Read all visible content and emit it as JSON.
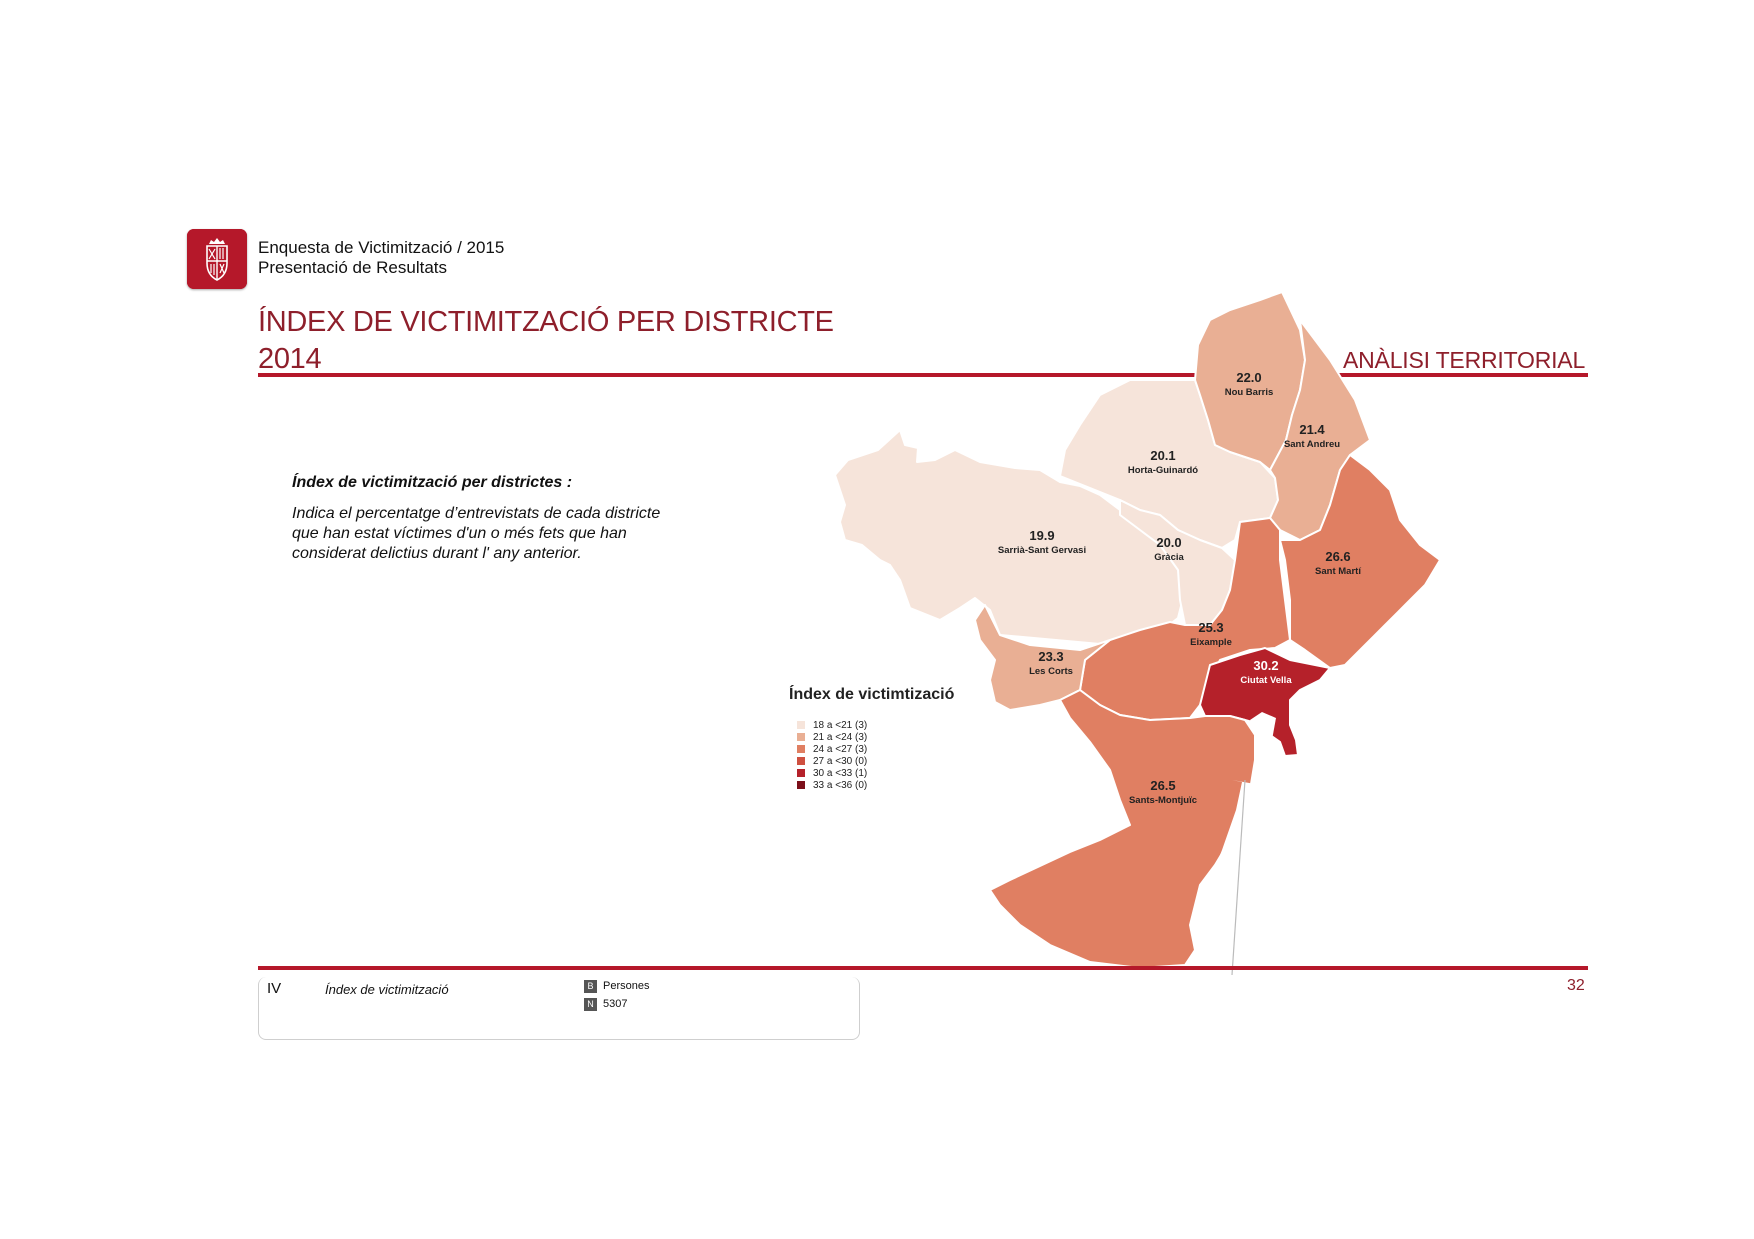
{
  "header": {
    "survey_title": "Enquesta de Victimització / 2015",
    "survey_subtitle": "Presentació de Resultats"
  },
  "title": {
    "line1": "ÍNDEX DE VICTIMITZACIÓ PER DISTRICTE",
    "line2": "2014"
  },
  "section_label": "ANÀLISI TERRITORIAL",
  "definition": {
    "title": "Índex de victimització per districtes :",
    "body": "Indica el percentatge d’entrevistats de cada districte que han estat víctimes d'un o més fets que han considerat delictius durant l' any anterior."
  },
  "map": {
    "legend": {
      "title": "Índex de victimtizació",
      "classes": [
        {
          "label": "18 a <21 (3)",
          "color": "#f6e4da"
        },
        {
          "label": "21 a <24 (3)",
          "color": "#e9af94"
        },
        {
          "label": "24 a <27 (3)",
          "color": "#e07f62"
        },
        {
          "label": "27 a <30 (0)",
          "color": "#cf5040"
        },
        {
          "label": "30 a <33 (1)",
          "color": "#b5212a"
        },
        {
          "label": "33 a <36 (0)",
          "color": "#7c0f1a"
        }
      ]
    },
    "districts": [
      {
        "name": "Nou Barris",
        "value": "22.0",
        "class": 1
      },
      {
        "name": "Sant Andreu",
        "value": "21.4",
        "class": 1
      },
      {
        "name": "Horta-Guinardó",
        "value": "20.1",
        "class": 0
      },
      {
        "name": "Sarrià-Sant Gervasi",
        "value": "19.9",
        "class": 0
      },
      {
        "name": "Gràcia",
        "value": "20.0",
        "class": 0
      },
      {
        "name": "Sant Martí",
        "value": "26.6",
        "class": 2
      },
      {
        "name": "Eixample",
        "value": "25.3",
        "class": 2
      },
      {
        "name": "Les Corts",
        "value": "23.3",
        "class": 1
      },
      {
        "name": "Ciutat Vella",
        "value": "30.2",
        "class": 4
      },
      {
        "name": "Sants-Montjuïc",
        "value": "26.5",
        "class": 2
      }
    ]
  },
  "footer": {
    "section": "IV",
    "indicator": "Índex de victimització",
    "base_code": "B",
    "base_label": "Persones",
    "n_code": "N",
    "n_value": "5307",
    "page_number": "32"
  }
}
